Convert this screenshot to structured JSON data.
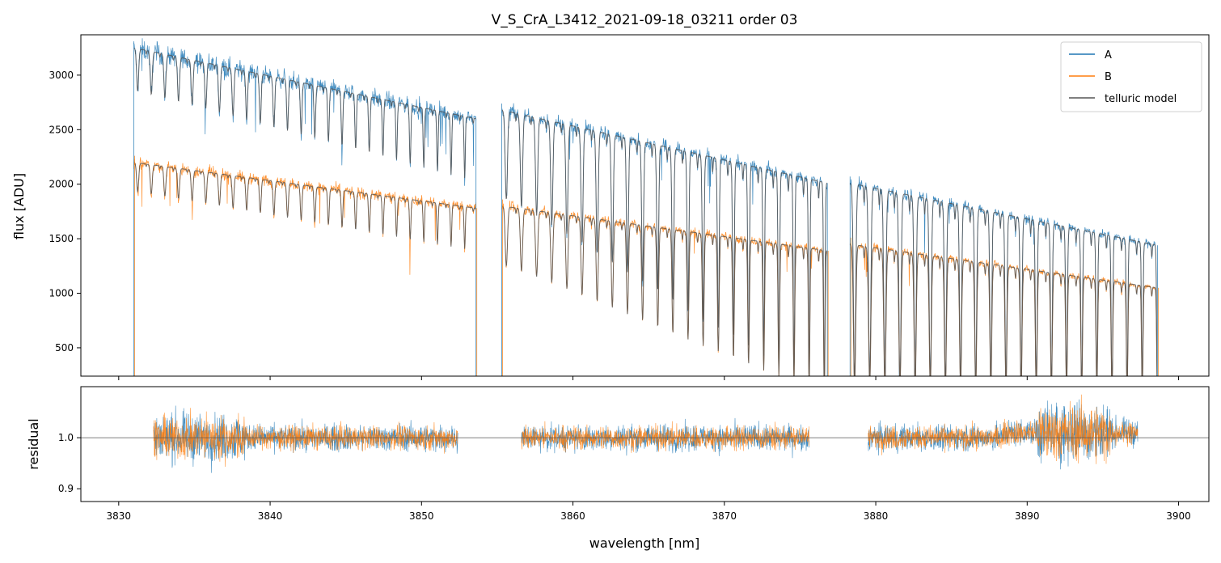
{
  "chart_data": [
    {
      "type": "line",
      "panel": "spectrum",
      "title": "V_S_CrA_L3412_2021-09-18_03211  order 03",
      "xlabel": "",
      "ylabel": "flux [ADU]",
      "xlim": [
        3827.5,
        3902.0
      ],
      "ylim": [
        240,
        3370
      ],
      "yticks": [
        500,
        1000,
        1500,
        2000,
        2500,
        3000
      ],
      "xticks": [
        3830,
        3840,
        3850,
        3860,
        3870,
        3880,
        3890,
        3900
      ],
      "legend": {
        "position": "top-right",
        "entries": [
          {
            "label": "A",
            "color": "#1f77b4"
          },
          {
            "label": "B",
            "color": "#ff7f0e"
          },
          {
            "label": "telluric model",
            "color": "#555555"
          }
        ]
      },
      "segments": [
        {
          "x": [
            3831.0,
            3853.6
          ],
          "A_cont": [
            3250,
            2600
          ],
          "B_cont": [
            2200,
            1780
          ],
          "line_spacing": 0.9,
          "depth_start": 0.12,
          "depth_end": 0.22
        },
        {
          "x": [
            3855.3,
            3876.8
          ],
          "A_cont": [
            2680,
            2010
          ],
          "B_cont": [
            1800,
            1390
          ],
          "line_spacing": 1.0,
          "depth_start": 0.3,
          "depth_end": 0.95
        },
        {
          "x": [
            3878.3,
            3898.6
          ],
          "A_cont": [
            2010,
            1440
          ],
          "B_cont": [
            1450,
            1050
          ],
          "line_spacing": 1.0,
          "depth_start": 0.9,
          "depth_end": 0.95
        }
      ],
      "series": [
        {
          "name": "A",
          "color": "#1f77b4"
        },
        {
          "name": "B",
          "color": "#ff7f0e"
        },
        {
          "name": "telluric model",
          "color": "#555555"
        }
      ]
    },
    {
      "type": "line",
      "panel": "residual",
      "xlabel": "wavelength [nm]",
      "ylabel": "residual",
      "xlim": [
        3827.5,
        3902.0
      ],
      "ylim": [
        0.875,
        1.1
      ],
      "yticks": [
        0.9,
        1.0
      ],
      "xticks": [
        3830,
        3840,
        3850,
        3860,
        3870,
        3880,
        3890,
        3900
      ],
      "reference_line": 1.0,
      "segments": [
        {
          "x": [
            3832.3,
            3852.4
          ]
        },
        {
          "x": [
            3856.6,
            3875.6
          ]
        },
        {
          "x": [
            3879.5,
            3897.3
          ]
        }
      ],
      "series": [
        {
          "name": "A",
          "color": "#1f77b4"
        },
        {
          "name": "B",
          "color": "#ff7f0e"
        }
      ]
    }
  ]
}
